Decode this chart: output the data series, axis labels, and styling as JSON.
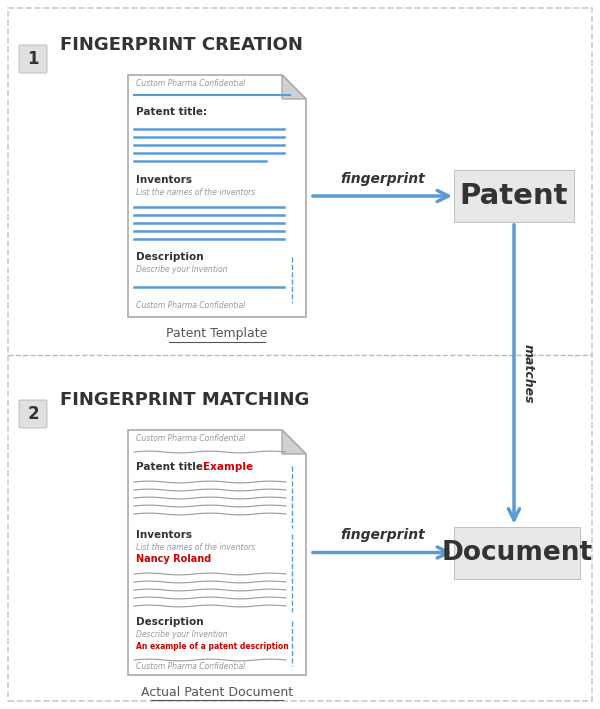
{
  "bg_color": "#ffffff",
  "border_color": "#cccccc",
  "section1_title": "FINGERPRINT CREATION",
  "section2_title": "FINGERPRINT MATCHING",
  "step1_label": "1",
  "step2_label": "2",
  "arrow_color": "#5b9bd5",
  "doc_border_color": "#aaaaaa",
  "doc_fill_color": "#ffffff",
  "doc_line_color": "#5b9bd5",
  "box_fill": "#e8e8e8",
  "patent_label": "Patent",
  "document_label": "Document",
  "fingerprint_label": "fingerprint",
  "matches_label": "matches",
  "patent_template_label": "Patent Template",
  "actual_doc_label": "Actual Patent Document",
  "divider_color": "#bbbbbb",
  "title_color": "#333333",
  "step_bg": "#e0e0e0",
  "red_text": "#cc0000",
  "gray_text": "#999999"
}
